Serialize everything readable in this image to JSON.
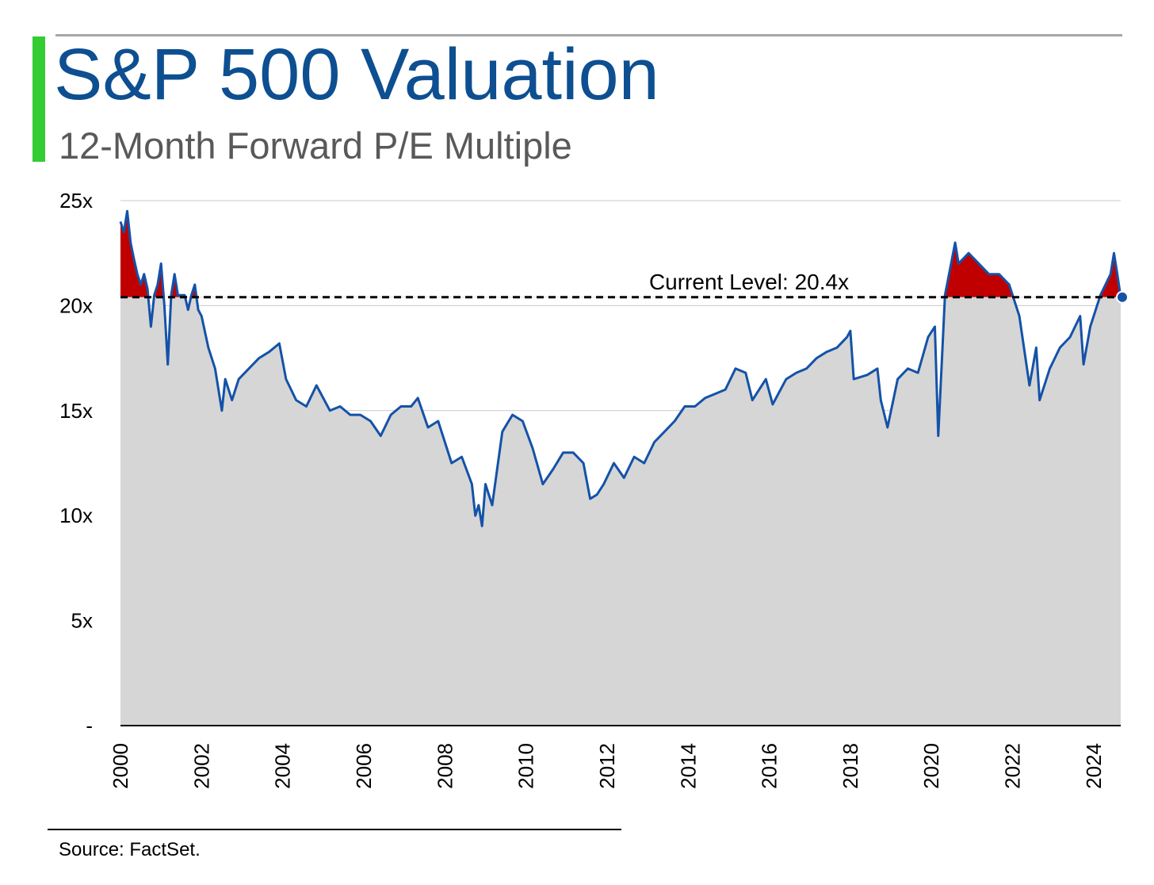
{
  "header": {
    "title": "S&P 500 Valuation",
    "subtitle": "12-Month Forward P/E Multiple"
  },
  "footer": {
    "source": "Source: FactSet."
  },
  "colors": {
    "accent_bar": "#33cc33",
    "title": "#0d4f91",
    "line": "#1452a8",
    "area_fill": "#d6d6d6",
    "above_current_fill": "#c00000",
    "gridline": "#c8c8c8",
    "reference_line": "#000000"
  },
  "chart_data": {
    "type": "area",
    "title": "S&P 500 Valuation",
    "subtitle": "12-Month Forward P/E Multiple",
    "xlabel": "",
    "ylabel": "",
    "ylim": [
      0,
      25
    ],
    "xlim": [
      "2000-01",
      "2024-09"
    ],
    "y_ticks": [
      0,
      5,
      10,
      15,
      20,
      25
    ],
    "y_tick_labels": [
      "-",
      "5x",
      "10x",
      "15x",
      "20x",
      "25x"
    ],
    "x_ticks": [
      2000,
      2002,
      2004,
      2006,
      2008,
      2010,
      2012,
      2014,
      2016,
      2018,
      2020,
      2022,
      2024
    ],
    "x_tick_labels": [
      "2000",
      "2002",
      "2004",
      "2006",
      "2008",
      "2010",
      "2012",
      "2014",
      "2016",
      "2018",
      "2020",
      "2022",
      "2024"
    ],
    "grid": true,
    "legend": "none",
    "reference_line": {
      "value": 20.4,
      "label": "Current Level: 20.4x",
      "style": "dashed"
    },
    "above_reference_fill": "red",
    "series": [
      {
        "x": [
          "2000-01",
          "2000-02",
          "2000-03",
          "2000-04",
          "2000-05",
          "2000-06",
          "2000-07",
          "2000-08",
          "2000-09",
          "2000-10",
          "2000-11",
          "2000-12",
          "2001-01",
          "2001-02",
          "2001-03",
          "2001-04",
          "2001-05",
          "2001-06",
          "2001-07",
          "2001-08",
          "2001-09",
          "2001-10",
          "2001-11",
          "2001-12",
          "2002-01",
          "2002-03",
          "2002-05",
          "2002-07",
          "2002-08",
          "2002-10",
          "2002-12",
          "2003-03",
          "2003-06",
          "2003-09",
          "2003-12",
          "2004-02",
          "2004-05",
          "2004-08",
          "2004-11",
          "2005-03",
          "2005-06",
          "2005-09",
          "2005-12",
          "2006-03",
          "2006-06",
          "2006-09",
          "2006-12",
          "2007-03",
          "2007-05",
          "2007-08",
          "2007-11",
          "2008-03",
          "2008-06",
          "2008-09",
          "2008-10",
          "2008-11",
          "2008-12",
          "2009-01",
          "2009-03",
          "2009-06",
          "2009-09",
          "2009-12",
          "2010-03",
          "2010-06",
          "2010-09",
          "2010-12",
          "2011-03",
          "2011-06",
          "2011-08",
          "2011-10",
          "2011-12",
          "2012-03",
          "2012-06",
          "2012-09",
          "2012-12",
          "2013-03",
          "2013-06",
          "2013-09",
          "2013-12",
          "2014-03",
          "2014-06",
          "2014-09",
          "2014-12",
          "2015-03",
          "2015-06",
          "2015-08",
          "2015-10",
          "2015-12",
          "2016-02",
          "2016-06",
          "2016-09",
          "2016-12",
          "2017-03",
          "2017-06",
          "2017-09",
          "2017-12",
          "2018-01",
          "2018-02",
          "2018-06",
          "2018-09",
          "2018-10",
          "2018-12",
          "2019-03",
          "2019-06",
          "2019-09",
          "2019-12",
          "2020-02",
          "2020-03",
          "2020-05",
          "2020-08",
          "2020-09",
          "2020-12",
          "2021-03",
          "2021-06",
          "2021-09",
          "2021-12",
          "2022-03",
          "2022-06",
          "2022-08",
          "2022-09",
          "2022-12",
          "2023-03",
          "2023-06",
          "2023-09",
          "2023-10",
          "2023-12",
          "2024-03",
          "2024-06",
          "2024-07",
          "2024-08",
          "2024-09"
        ],
        "values": [
          24.0,
          23.5,
          24.5,
          23.0,
          22.2,
          21.5,
          21.0,
          21.5,
          20.8,
          19.0,
          20.5,
          21.0,
          22.0,
          20.0,
          17.2,
          20.5,
          21.5,
          20.5,
          20.5,
          20.5,
          19.8,
          20.5,
          21.0,
          19.8,
          19.5,
          18.0,
          17.0,
          15.0,
          16.5,
          15.5,
          16.5,
          17.0,
          17.5,
          17.8,
          18.2,
          16.5,
          15.5,
          15.2,
          16.2,
          15.0,
          15.2,
          14.8,
          14.8,
          14.5,
          13.8,
          14.8,
          15.2,
          15.2,
          15.6,
          14.2,
          14.5,
          12.5,
          12.8,
          11.5,
          10.0,
          10.5,
          9.5,
          11.5,
          10.5,
          14.0,
          14.8,
          14.5,
          13.2,
          11.5,
          12.2,
          13.0,
          13.0,
          12.5,
          10.8,
          11.0,
          11.5,
          12.5,
          11.8,
          12.8,
          12.5,
          13.5,
          14.0,
          14.5,
          15.2,
          15.2,
          15.6,
          15.8,
          16.0,
          17.0,
          16.8,
          15.5,
          16.0,
          16.5,
          15.3,
          16.5,
          16.8,
          17.0,
          17.5,
          17.8,
          18.0,
          18.5,
          18.8,
          16.5,
          16.7,
          17.0,
          15.5,
          14.2,
          16.5,
          17.0,
          16.8,
          18.5,
          19.0,
          13.8,
          20.5,
          23.0,
          22.0,
          22.5,
          22.0,
          21.5,
          21.5,
          21.0,
          19.5,
          16.2,
          18.0,
          15.5,
          17.0,
          18.0,
          18.5,
          19.5,
          17.2,
          19.0,
          20.5,
          21.5,
          22.5,
          21.5,
          20.4
        ]
      }
    ]
  }
}
